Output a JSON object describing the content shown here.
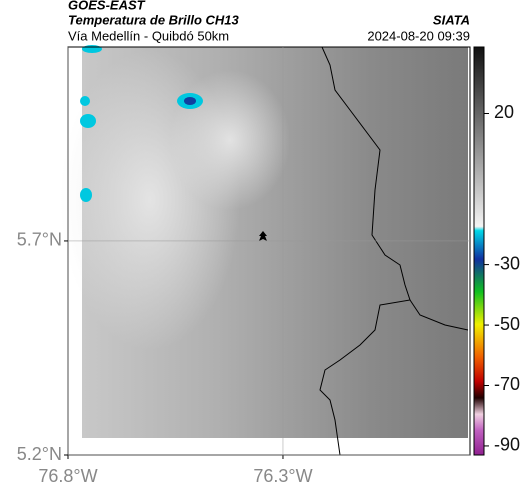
{
  "header": {
    "source": "GOES-EAST",
    "title": "Temperatura de Brillo CH13",
    "org": "SIATA",
    "subtitle": "Vía Medellín - Quibdó 50km",
    "datetime": "2024-08-20 09:39"
  },
  "map": {
    "xlim": [
      -76.8,
      -75.865
    ],
    "ylim": [
      5.2,
      6.153
    ],
    "xticks": [
      {
        "value": -76.8,
        "label": "76.8°W"
      },
      {
        "value": -76.3,
        "label": "76.3°W"
      }
    ],
    "yticks": [
      {
        "value": 5.2,
        "label": "5.2°N"
      },
      {
        "value": 5.7,
        "label": "5.7°N"
      }
    ]
  },
  "colorbar": {
    "lim": [
      42,
      -93
    ],
    "ticks": [
      20,
      -30,
      -50,
      -70,
      -90
    ]
  }
}
